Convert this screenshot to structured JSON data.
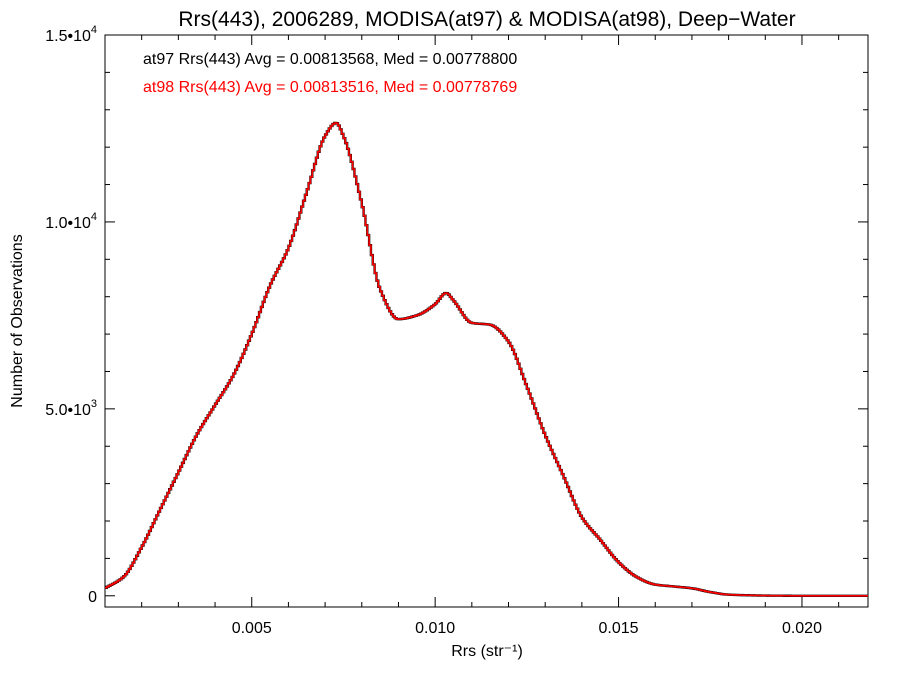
{
  "chart_data": {
    "type": "line",
    "title": "Rrs(443), 2006289, MODISA(at97) & MODISA(at98), Deep−Water",
    "xlabel": "Rrs (str⁻¹)",
    "ylabel": "Number of Observations",
    "xlim": [
      0.001,
      0.0218
    ],
    "ylim": [
      -300,
      15000
    ],
    "x_ticks": [
      {
        "value": 0.005,
        "label": "0.005"
      },
      {
        "value": 0.01,
        "label": "0.010"
      },
      {
        "value": 0.015,
        "label": "0.015"
      },
      {
        "value": 0.02,
        "label": "0.020"
      }
    ],
    "y_ticks": [
      {
        "value": 0,
        "label": "0",
        "exp": ""
      },
      {
        "value": 5000,
        "label": "5.0•10",
        "exp": "3"
      },
      {
        "value": 10000,
        "label": "1.0•10",
        "exp": "4"
      },
      {
        "value": 15000,
        "label": "1.5•10",
        "exp": "4"
      }
    ],
    "legend": [
      {
        "text": "at97 Rrs(443) Avg = 0.00813568, Med = 0.00778800",
        "color": "#000000"
      },
      {
        "text": "at98 Rrs(443) Avg = 0.00813516, Med = 0.00778769",
        "color": "#ff0000"
      }
    ],
    "series": [
      {
        "color": "#000000",
        "style": "step",
        "x": [
          0.001,
          0.0015,
          0.002,
          0.0025,
          0.003,
          0.0035,
          0.004,
          0.0045,
          0.005,
          0.0055,
          0.006,
          0.0065,
          0.007,
          0.0073,
          0.0075,
          0.008,
          0.0085,
          0.009,
          0.0095,
          0.01,
          0.0103,
          0.0105,
          0.011,
          0.0115,
          0.012,
          0.0125,
          0.013,
          0.0135,
          0.014,
          0.0145,
          0.015,
          0.0155,
          0.016,
          0.0165,
          0.017,
          0.0175,
          0.018,
          0.0185,
          0.019,
          0.02,
          0.0218
        ],
        "y": [
          200,
          500,
          1300,
          2300,
          3300,
          4300,
          5100,
          5900,
          7000,
          8300,
          9300,
          10800,
          12300,
          12650,
          12300,
          10500,
          8200,
          7400,
          7500,
          7800,
          8100,
          7900,
          7300,
          7250,
          6800,
          5600,
          4300,
          3200,
          2100,
          1500,
          900,
          500,
          300,
          250,
          200,
          100,
          30,
          15,
          5,
          0,
          0
        ]
      },
      {
        "color": "#ff0000",
        "style": "step",
        "x": [
          0.001,
          0.0015,
          0.002,
          0.0025,
          0.003,
          0.0035,
          0.004,
          0.0045,
          0.005,
          0.0055,
          0.006,
          0.0065,
          0.007,
          0.0073,
          0.0075,
          0.008,
          0.0085,
          0.009,
          0.0095,
          0.01,
          0.0103,
          0.0105,
          0.011,
          0.0115,
          0.012,
          0.0125,
          0.013,
          0.0135,
          0.014,
          0.0145,
          0.015,
          0.0155,
          0.016,
          0.0165,
          0.017,
          0.0175,
          0.018,
          0.0185,
          0.019,
          0.02,
          0.0218
        ],
        "y": [
          200,
          500,
          1300,
          2300,
          3300,
          4300,
          5100,
          5900,
          7000,
          8300,
          9300,
          10800,
          12300,
          12650,
          12300,
          10500,
          8200,
          7400,
          7500,
          7800,
          8100,
          7900,
          7300,
          7250,
          6800,
          5600,
          4300,
          3200,
          2100,
          1500,
          900,
          500,
          300,
          250,
          200,
          100,
          30,
          15,
          5,
          0,
          0
        ]
      }
    ]
  }
}
